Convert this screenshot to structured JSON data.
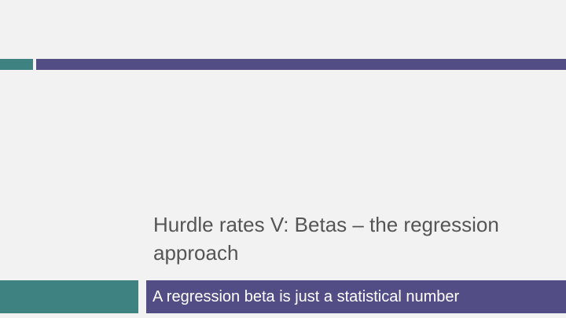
{
  "slide": {
    "title": "Hurdle rates V: Betas – the regression approach",
    "subtitle": "A regression beta is just a statistical number"
  },
  "colors": {
    "background": "#f2f2f2",
    "teal_accent": "#3e8282",
    "purple_accent": "#534d86",
    "title_text": "#555555",
    "subtitle_text": "#ffffff"
  }
}
